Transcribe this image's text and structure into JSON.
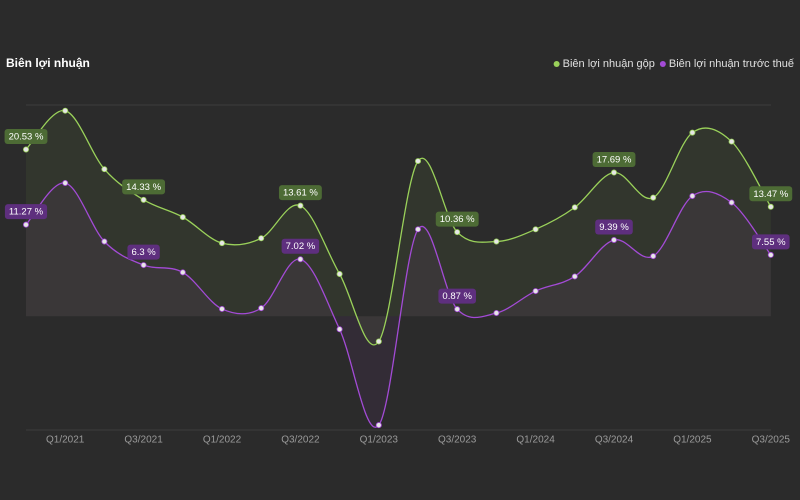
{
  "chart_data": {
    "type": "line",
    "title": "Biên lợi nhuận",
    "categories": [
      null,
      "Q1/2021",
      null,
      "Q3/2021",
      null,
      "Q1/2022",
      null,
      "Q3/2022",
      null,
      "Q1/2023",
      null,
      "Q3/2023",
      null,
      "Q1/2024",
      null,
      "Q3/2024",
      null,
      "Q1/2025",
      null,
      "Q3/2025"
    ],
    "ylim": [
      -14,
      26
    ],
    "series": [
      {
        "name": "Biên lợi nhuận gộp",
        "color": "#9ad15a",
        "label_color": "#4d6b35",
        "values": [
          20.53,
          25.3,
          18.1,
          14.33,
          12.2,
          9.0,
          9.6,
          13.61,
          5.2,
          -3.1,
          19.1,
          10.36,
          9.2,
          10.7,
          13.4,
          17.69,
          14.6,
          22.6,
          21.5,
          13.47
        ],
        "value_labels": [
          "20.53 %",
          null,
          null,
          "14.33 %",
          null,
          null,
          null,
          "13.61 %",
          null,
          null,
          null,
          "10.36 %",
          null,
          null,
          null,
          "17.69 %",
          null,
          null,
          null,
          "13.47 %"
        ]
      },
      {
        "name": "Biên lợi nhuận trước thuế",
        "color": "#a34bd6",
        "label_color": "#5e2f7e",
        "values": [
          11.27,
          16.4,
          9.2,
          6.3,
          5.4,
          0.9,
          1.0,
          7.02,
          -1.6,
          -13.4,
          10.7,
          0.87,
          0.4,
          3.1,
          4.9,
          9.39,
          7.4,
          14.8,
          14.0,
          7.55
        ],
        "value_labels": [
          "11.27 %",
          null,
          null,
          "6.3 %",
          null,
          null,
          null,
          "7.02 %",
          null,
          null,
          null,
          "0.87 %",
          null,
          null,
          null,
          "9.39 %",
          null,
          null,
          null,
          "7.55 %"
        ]
      }
    ]
  }
}
